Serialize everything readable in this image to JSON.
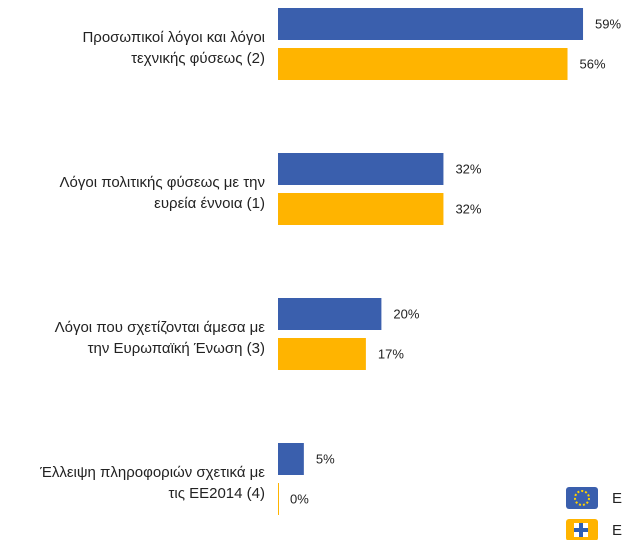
{
  "chart_data": {
    "type": "bar",
    "orientation": "horizontal",
    "categories": [
      "Προσωπικοί λόγοι και λόγοι\nτεχνικής φύσεως (2)",
      "Λόγοι πολιτικής φύσεως με την\nευρεία έννοια (1)",
      "Λόγοι που σχετίζονται άμεσα με\nτην Ευρωπαϊκή Ένωση (3)",
      "Έλλειψη πληροφοριών σχετικά με\nτις ΕΕ2014 (4)"
    ],
    "series": [
      {
        "name": "E",
        "color": "#3a5fad",
        "values": [
          59,
          32,
          20,
          5
        ],
        "value_labels": [
          "59%",
          "32%",
          "20%",
          "5%"
        ]
      },
      {
        "name": "E",
        "color": "#ffb400",
        "values": [
          56,
          32,
          17,
          0
        ],
        "value_labels": [
          "56%",
          "32%",
          "17%",
          "0%"
        ]
      }
    ],
    "xlim": [
      0,
      100
    ],
    "legend": "lower right"
  }
}
